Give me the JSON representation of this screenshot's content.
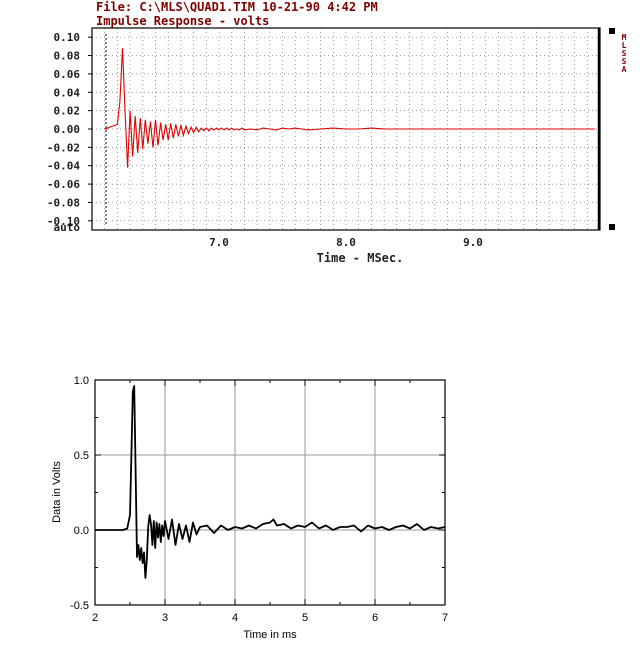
{
  "top_chart": {
    "file_line": "File: C:\\MLS\\QUAD1.TIM 10-21-90 4:42 PM",
    "title": "Impulse Response - volts",
    "side_label": "MLSSA",
    "xlabel": "Time - MSec.",
    "auto_label": "auto"
  },
  "bottom_chart": {
    "xlabel": "Time in ms",
    "ylabel": "Data in Volts"
  },
  "chart_data": [
    {
      "type": "line",
      "title": "Impulse Response - volts",
      "xlabel": "Time - MSec.",
      "ylabel": "",
      "xlim": [
        6.0,
        10.0
      ],
      "ylim": [
        -0.11,
        0.11
      ],
      "x_ticks": [
        7.0,
        8.0,
        9.0
      ],
      "x_tick_labels": [
        "7.0",
        "8.0",
        "9.0"
      ],
      "y_ticks": [
        0.1,
        0.08,
        0.06,
        0.04,
        0.02,
        0.0,
        -0.02,
        -0.04,
        -0.06,
        -0.08,
        -0.1
      ],
      "y_tick_labels": [
        "0.10",
        "0.08",
        "0.06",
        "0.04",
        "0.02",
        "0.00",
        "-0.02",
        "-0.04",
        "-0.06",
        "-0.08",
        "-0.10"
      ],
      "grid": true,
      "color": "#e00000",
      "series": [
        {
          "x": [
            6.12,
            6.1,
            6.2,
            6.22,
            6.24,
            6.26,
            6.28,
            6.3,
            6.32,
            6.34,
            6.36,
            6.38,
            6.4,
            6.42,
            6.44,
            6.46,
            6.48,
            6.5,
            6.52,
            6.54,
            6.56,
            6.58,
            6.6,
            6.62,
            6.64,
            6.66,
            6.68,
            6.7,
            6.72,
            6.74,
            6.76,
            6.78,
            6.8,
            6.82,
            6.84,
            6.86,
            6.88,
            6.9,
            6.92,
            6.94,
            6.96,
            6.98,
            7.0,
            7.02,
            7.04,
            7.06,
            7.08,
            7.1,
            7.12,
            7.14,
            7.16,
            7.18,
            7.2,
            7.25,
            7.3,
            7.35,
            7.4,
            7.45,
            7.5,
            7.55,
            7.6,
            7.65,
            7.7,
            7.8,
            7.9,
            8.0,
            8.1,
            8.2,
            8.3,
            8.4,
            8.5,
            8.6,
            8.8,
            9.0,
            9.2,
            9.4,
            9.6,
            9.8,
            9.96
          ],
          "values": [
            0.0,
            0.0,
            0.005,
            0.03,
            0.088,
            0.02,
            -0.042,
            0.02,
            -0.03,
            0.014,
            -0.026,
            0.012,
            -0.022,
            0.01,
            -0.016,
            0.008,
            -0.02,
            0.01,
            -0.018,
            0.007,
            -0.012,
            0.005,
            -0.012,
            0.006,
            -0.01,
            0.005,
            -0.008,
            0.004,
            -0.007,
            0.003,
            -0.005,
            0.002,
            -0.004,
            0.002,
            -0.003,
            0.001,
            -0.002,
            0.001,
            -0.002,
            0.001,
            -0.001,
            0.001,
            -0.001,
            0.001,
            -0.001,
            0.001,
            -0.001,
            0.001,
            -0.001,
            0.0,
            -0.001,
            0.001,
            -0.001,
            0.0,
            -0.001,
            0.001,
            0.0,
            -0.001,
            0.001,
            0.0,
            0.001,
            0.0,
            -0.001,
            0.0,
            0.001,
            0.0,
            0.0,
            0.001,
            0.0,
            0.0,
            0.0,
            0.0,
            0.0,
            0.0,
            0.0,
            0.0,
            0.0,
            0.0,
            0.0
          ]
        }
      ]
    },
    {
      "type": "line",
      "title": "",
      "xlabel": "Time in ms",
      "ylabel": "Data in Volts",
      "xlim": [
        2,
        7
      ],
      "ylim": [
        -0.5,
        1.0
      ],
      "x_ticks": [
        2,
        3,
        4,
        5,
        6,
        7
      ],
      "x_tick_labels": [
        "2",
        "3",
        "4",
        "5",
        "6",
        "7"
      ],
      "y_ticks": [
        1.0,
        0.5,
        0.0,
        -0.5
      ],
      "y_tick_labels": [
        "1.0",
        "0.5",
        "0.0",
        "-0.5"
      ],
      "grid": true,
      "color": "#000000",
      "series": [
        {
          "x": [
            2.0,
            2.2,
            2.4,
            2.46,
            2.5,
            2.52,
            2.54,
            2.56,
            2.58,
            2.6,
            2.62,
            2.64,
            2.66,
            2.68,
            2.7,
            2.72,
            2.74,
            2.76,
            2.78,
            2.8,
            2.82,
            2.84,
            2.86,
            2.88,
            2.9,
            2.92,
            2.94,
            2.96,
            2.98,
            3.0,
            3.05,
            3.1,
            3.15,
            3.2,
            3.25,
            3.3,
            3.35,
            3.4,
            3.45,
            3.5,
            3.6,
            3.7,
            3.8,
            3.9,
            4.0,
            4.1,
            4.2,
            4.3,
            4.4,
            4.5,
            4.55,
            4.6,
            4.7,
            4.8,
            4.9,
            5.0,
            5.1,
            5.2,
            5.3,
            5.4,
            5.5,
            5.6,
            5.7,
            5.8,
            5.9,
            6.0,
            6.1,
            6.2,
            6.3,
            6.4,
            6.5,
            6.6,
            6.7,
            6.8,
            6.9,
            7.0
          ],
          "values": [
            0.0,
            0.0,
            0.0,
            0.01,
            0.1,
            0.5,
            0.92,
            0.96,
            0.4,
            -0.18,
            -0.1,
            -0.2,
            -0.12,
            -0.22,
            -0.15,
            -0.32,
            -0.2,
            0.02,
            0.1,
            0.04,
            -0.1,
            0.06,
            -0.12,
            0.05,
            -0.05,
            0.04,
            -0.08,
            0.03,
            -0.04,
            0.06,
            -0.06,
            0.07,
            -0.1,
            0.04,
            -0.06,
            0.03,
            -0.08,
            0.05,
            -0.03,
            0.02,
            0.03,
            -0.02,
            0.03,
            0.0,
            0.02,
            0.01,
            0.03,
            0.01,
            0.04,
            0.05,
            0.07,
            0.03,
            0.04,
            0.01,
            0.03,
            0.02,
            0.05,
            0.01,
            0.03,
            0.0,
            0.02,
            0.02,
            0.03,
            -0.01,
            0.03,
            0.01,
            0.02,
            0.0,
            0.02,
            0.03,
            0.01,
            0.04,
            0.0,
            0.02,
            0.01,
            0.02
          ]
        }
      ]
    }
  ]
}
